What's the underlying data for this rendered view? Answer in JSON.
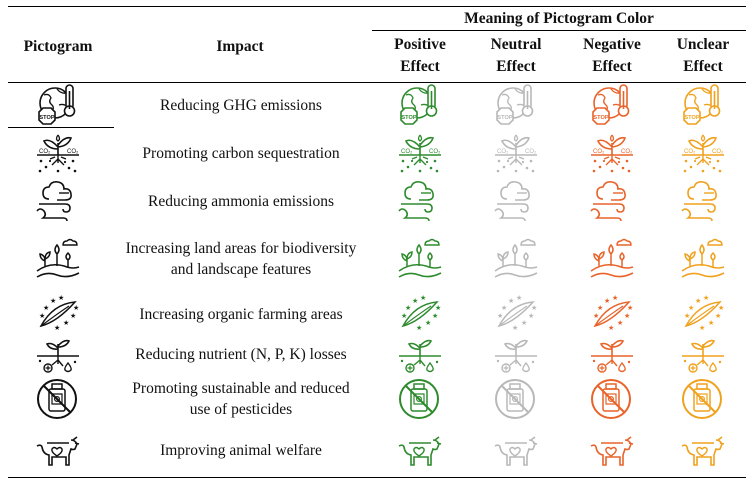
{
  "header": {
    "group_label": "Meaning of Pictogram Color",
    "pictogram_label": "Pictogram",
    "impact_label": "Impact",
    "columns": [
      {
        "line1": "Positive",
        "line2": "Effect",
        "color": "#2e8b2e"
      },
      {
        "line1": "Neutral",
        "line2": "Effect",
        "color": "#b8b8b8"
      },
      {
        "line1": "Negative",
        "line2": "Effect",
        "color": "#e8642a"
      },
      {
        "line1": "Unclear",
        "line2": "Effect",
        "color": "#f0a21e"
      }
    ]
  },
  "base_color": "#111111",
  "rows": [
    {
      "icon": "globe-thermometer-stop-icon",
      "impact": "Reducing GHG emissions",
      "stop_label": "STOP"
    },
    {
      "icon": "plant-co2-soil-icon",
      "impact": "Promoting carbon sequestration",
      "co2_label": "CO₂"
    },
    {
      "icon": "ammonia-cloud-icon",
      "impact": "Reducing ammonia emissions"
    },
    {
      "icon": "landscape-trees-icon",
      "impact": "Increasing land areas for biodiversity and landscape features"
    },
    {
      "icon": "organic-leaf-stars-icon",
      "impact": "Increasing organic farming areas"
    },
    {
      "icon": "sprout-nutrient-icon",
      "impact": "Reducing nutrient (N, P, K) losses"
    },
    {
      "icon": "no-pesticide-icon",
      "impact": "Promoting sustainable and reduced use of pesticides"
    },
    {
      "icon": "cow-heart-icon",
      "impact": "Improving animal welfare"
    }
  ]
}
